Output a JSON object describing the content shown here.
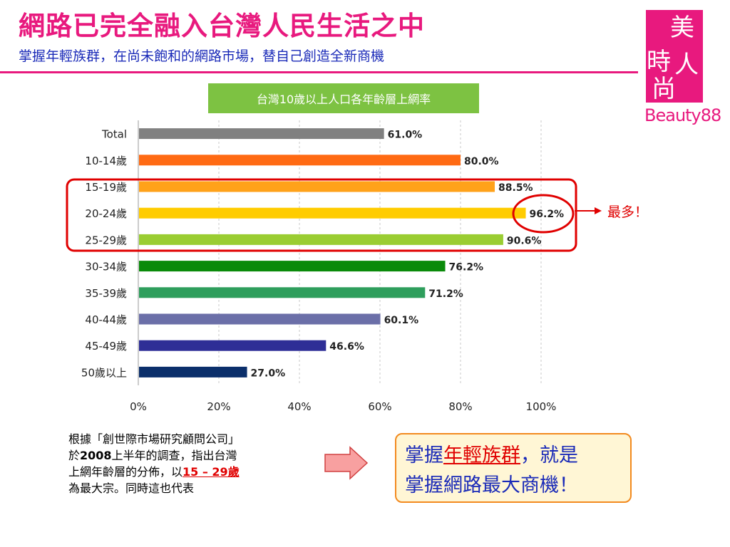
{
  "header": {
    "title": "網路已完全融入台灣人民生活之中",
    "subtitle": "掌握年輕族群，在尚未飽和的網路市場，替自己創造全新商機"
  },
  "logo": {
    "glyphs": [
      "時",
      "美",
      "尚",
      "人"
    ],
    "brand": "Beauty88"
  },
  "callout": {
    "label": "最多！"
  },
  "note": {
    "line1": "根據「創世際市場研究顧問公司」",
    "line2_pre": "於",
    "line2_year": "2008",
    "line2_post": "上半年的調查，指出台灣",
    "line3_pre": "上網年齡層的分佈，以",
    "line3_range": "15 – 29歲",
    "line4": "為最大宗。同時這也代表"
  },
  "cta": {
    "pre": "掌握",
    "highlight": "年輕族群",
    "post": "，就是",
    "line2": "掌握網路最大商機！"
  },
  "colors": {
    "accent": "#e8197e",
    "subtitle": "#1a2ab8",
    "chart_title_bg": "#7dc242",
    "alert": "#e00000"
  },
  "chart_data": {
    "type": "bar",
    "orientation": "horizontal",
    "title": "台灣10歲以上人口各年齡層上網率",
    "xlabel": "",
    "ylabel": "",
    "categories": [
      "Total",
      "10-14歲",
      "15-19歲",
      "20-24歲",
      "25-29歲",
      "30-34歲",
      "35-39歲",
      "40-44歲",
      "45-49歲",
      "50歲以上"
    ],
    "values": [
      61.0,
      80.0,
      88.5,
      96.2,
      90.6,
      76.2,
      71.2,
      60.1,
      46.6,
      27.0
    ],
    "value_labels": [
      "61.0%",
      "80.0%",
      "88.5%",
      "96.2%",
      "90.6%",
      "76.2%",
      "71.2%",
      "60.1%",
      "46.6%",
      "27.0%"
    ],
    "bar_colors": [
      "#808080",
      "#ff6a13",
      "#ffa21a",
      "#ffcc00",
      "#9acd32",
      "#0a8a0a",
      "#2e9e5c",
      "#6b6fa8",
      "#2e2e96",
      "#0b2f6b"
    ],
    "xlim": [
      0,
      100
    ],
    "x_ticks": [
      "0%",
      "20%",
      "40%",
      "60%",
      "80%",
      "100%"
    ],
    "grid": true,
    "highlight_group": [
      "15-19歲",
      "20-24歲",
      "25-29歲"
    ],
    "highlight_max": "20-24歲"
  }
}
